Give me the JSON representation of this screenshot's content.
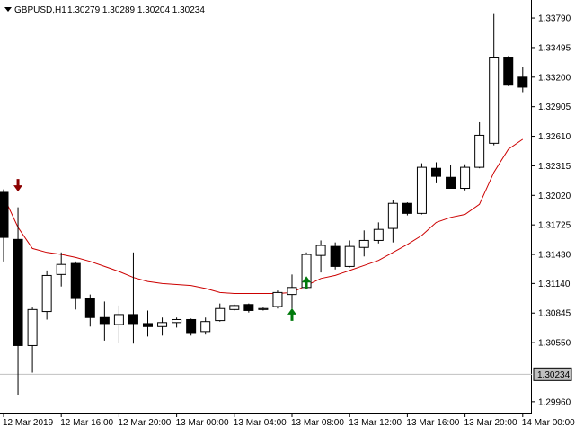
{
  "header": {
    "symbol_label": "GBPUSD,H1",
    "ohlc_label": "1.30279 1.30289 1.30204 1.30234"
  },
  "colors": {
    "background": "#ffffff",
    "candle_outline": "#000000",
    "bull_fill": "#ffffff",
    "bear_fill": "#000000",
    "ma_line": "#cc0000",
    "buy_arrow": "#007a0c",
    "sell_arrow": "#8b0000",
    "current_price_line": "#c0c0c0"
  },
  "chart_data": {
    "type": "candlestick",
    "title": "GBPUSD,H1",
    "x_labels": [
      {
        "text": "12 Mar 2019",
        "candle": 0
      },
      {
        "text": "12 Mar 16:00",
        "candle": 4
      },
      {
        "text": "12 Mar 20:00",
        "candle": 8
      },
      {
        "text": "13 Mar 00:00",
        "candle": 12
      },
      {
        "text": "13 Mar 04:00",
        "candle": 16
      },
      {
        "text": "13 Mar 08:00",
        "candle": 20
      },
      {
        "text": "13 Mar 12:00",
        "candle": 24
      },
      {
        "text": "13 Mar 16:00",
        "candle": 28
      },
      {
        "text": "13 Mar 20:00",
        "candle": 32
      },
      {
        "text": "14 Mar 00:00",
        "candle": 36
      }
    ],
    "y_ticks": [
      "1.33790",
      "1.33495",
      "1.33200",
      "1.32905",
      "1.32610",
      "1.32315",
      "1.32020",
      "1.31725",
      "1.31430",
      "1.31140",
      "1.30845",
      "1.30550",
      "1.29960"
    ],
    "ylim": [
      1.2986,
      1.3397
    ],
    "current_price": "1.30234",
    "candles": [
      {
        "o": 1.3205,
        "h": 1.3208,
        "l": 1.3136,
        "c": 1.316
      },
      {
        "o": 1.3158,
        "h": 1.319,
        "l": 1.3003,
        "c": 1.3052
      },
      {
        "o": 1.3052,
        "h": 1.309,
        "l": 1.3025,
        "c": 1.3088
      },
      {
        "o": 1.3086,
        "h": 1.3127,
        "l": 1.3078,
        "c": 1.3122
      },
      {
        "o": 1.3123,
        "h": 1.3145,
        "l": 1.3111,
        "c": 1.3133
      },
      {
        "o": 1.3134,
        "h": 1.3136,
        "l": 1.3088,
        "c": 1.3099
      },
      {
        "o": 1.3099,
        "h": 1.3103,
        "l": 1.3071,
        "c": 1.308
      },
      {
        "o": 1.308,
        "h": 1.3096,
        "l": 1.3057,
        "c": 1.3074
      },
      {
        "o": 1.3073,
        "h": 1.3092,
        "l": 1.3055,
        "c": 1.3083
      },
      {
        "o": 1.3083,
        "h": 1.3145,
        "l": 1.3054,
        "c": 1.3074
      },
      {
        "o": 1.3074,
        "h": 1.3087,
        "l": 1.3061,
        "c": 1.3071
      },
      {
        "o": 1.3071,
        "h": 1.308,
        "l": 1.3062,
        "c": 1.3075
      },
      {
        "o": 1.3075,
        "h": 1.308,
        "l": 1.307,
        "c": 1.3078
      },
      {
        "o": 1.3078,
        "h": 1.3079,
        "l": 1.3062,
        "c": 1.3065
      },
      {
        "o": 1.3066,
        "h": 1.308,
        "l": 1.3063,
        "c": 1.3076
      },
      {
        "o": 1.3077,
        "h": 1.3094,
        "l": 1.3076,
        "c": 1.3089
      },
      {
        "o": 1.3088,
        "h": 1.3093,
        "l": 1.3087,
        "c": 1.3092
      },
      {
        "o": 1.3093,
        "h": 1.3094,
        "l": 1.3085,
        "c": 1.3087
      },
      {
        "o": 1.3088,
        "h": 1.309,
        "l": 1.3087,
        "c": 1.3089
      },
      {
        "o": 1.3091,
        "h": 1.3107,
        "l": 1.3089,
        "c": 1.3105
      },
      {
        "o": 1.3103,
        "h": 1.3123,
        "l": 1.3087,
        "c": 1.311
      },
      {
        "o": 1.311,
        "h": 1.3145,
        "l": 1.3108,
        "c": 1.3143
      },
      {
        "o": 1.3142,
        "h": 1.3157,
        "l": 1.3125,
        "c": 1.3152
      },
      {
        "o": 1.3151,
        "h": 1.3155,
        "l": 1.3128,
        "c": 1.3131
      },
      {
        "o": 1.3131,
        "h": 1.3157,
        "l": 1.313,
        "c": 1.3151
      },
      {
        "o": 1.315,
        "h": 1.3167,
        "l": 1.3141,
        "c": 1.3157
      },
      {
        "o": 1.3157,
        "h": 1.3175,
        "l": 1.3154,
        "c": 1.3168
      },
      {
        "o": 1.3169,
        "h": 1.3197,
        "l": 1.3155,
        "c": 1.3194
      },
      {
        "o": 1.3194,
        "h": 1.3195,
        "l": 1.3182,
        "c": 1.3184
      },
      {
        "o": 1.3184,
        "h": 1.3234,
        "l": 1.3183,
        "c": 1.323
      },
      {
        "o": 1.3229,
        "h": 1.3235,
        "l": 1.3214,
        "c": 1.3221
      },
      {
        "o": 1.322,
        "h": 1.3232,
        "l": 1.3209,
        "c": 1.3209
      },
      {
        "o": 1.3209,
        "h": 1.3233,
        "l": 1.3207,
        "c": 1.323
      },
      {
        "o": 1.323,
        "h": 1.3275,
        "l": 1.3229,
        "c": 1.3262
      },
      {
        "o": 1.3254,
        "h": 1.3383,
        "l": 1.3252,
        "c": 1.334
      },
      {
        "o": 1.334,
        "h": 1.3341,
        "l": 1.3311,
        "c": 1.3312
      },
      {
        "o": 1.332,
        "h": 1.333,
        "l": 1.3305,
        "c": 1.331
      }
    ],
    "ma_series": {
      "name": "",
      "values": [
        1.3201,
        1.317,
        1.3149,
        1.3145,
        1.3143,
        1.314,
        1.3136,
        1.3131,
        1.3126,
        1.312,
        1.3116,
        1.3114,
        1.3113,
        1.3112,
        1.3109,
        1.3105,
        1.3104,
        1.3104,
        1.3104,
        1.3104,
        1.3105,
        1.3112,
        1.3119,
        1.3122,
        1.3127,
        1.3132,
        1.3137,
        1.3145,
        1.3153,
        1.3162,
        1.3175,
        1.318,
        1.3183,
        1.3193,
        1.3225,
        1.3248,
        1.3258
      ]
    },
    "signals": [
      {
        "type": "sell",
        "candle": 1,
        "price": 1.3212
      },
      {
        "type": "buy",
        "candle": 20,
        "price": 1.3083
      },
      {
        "type": "buy",
        "candle": 21,
        "price": 1.3115
      }
    ],
    "grid": false,
    "legend": "none"
  }
}
